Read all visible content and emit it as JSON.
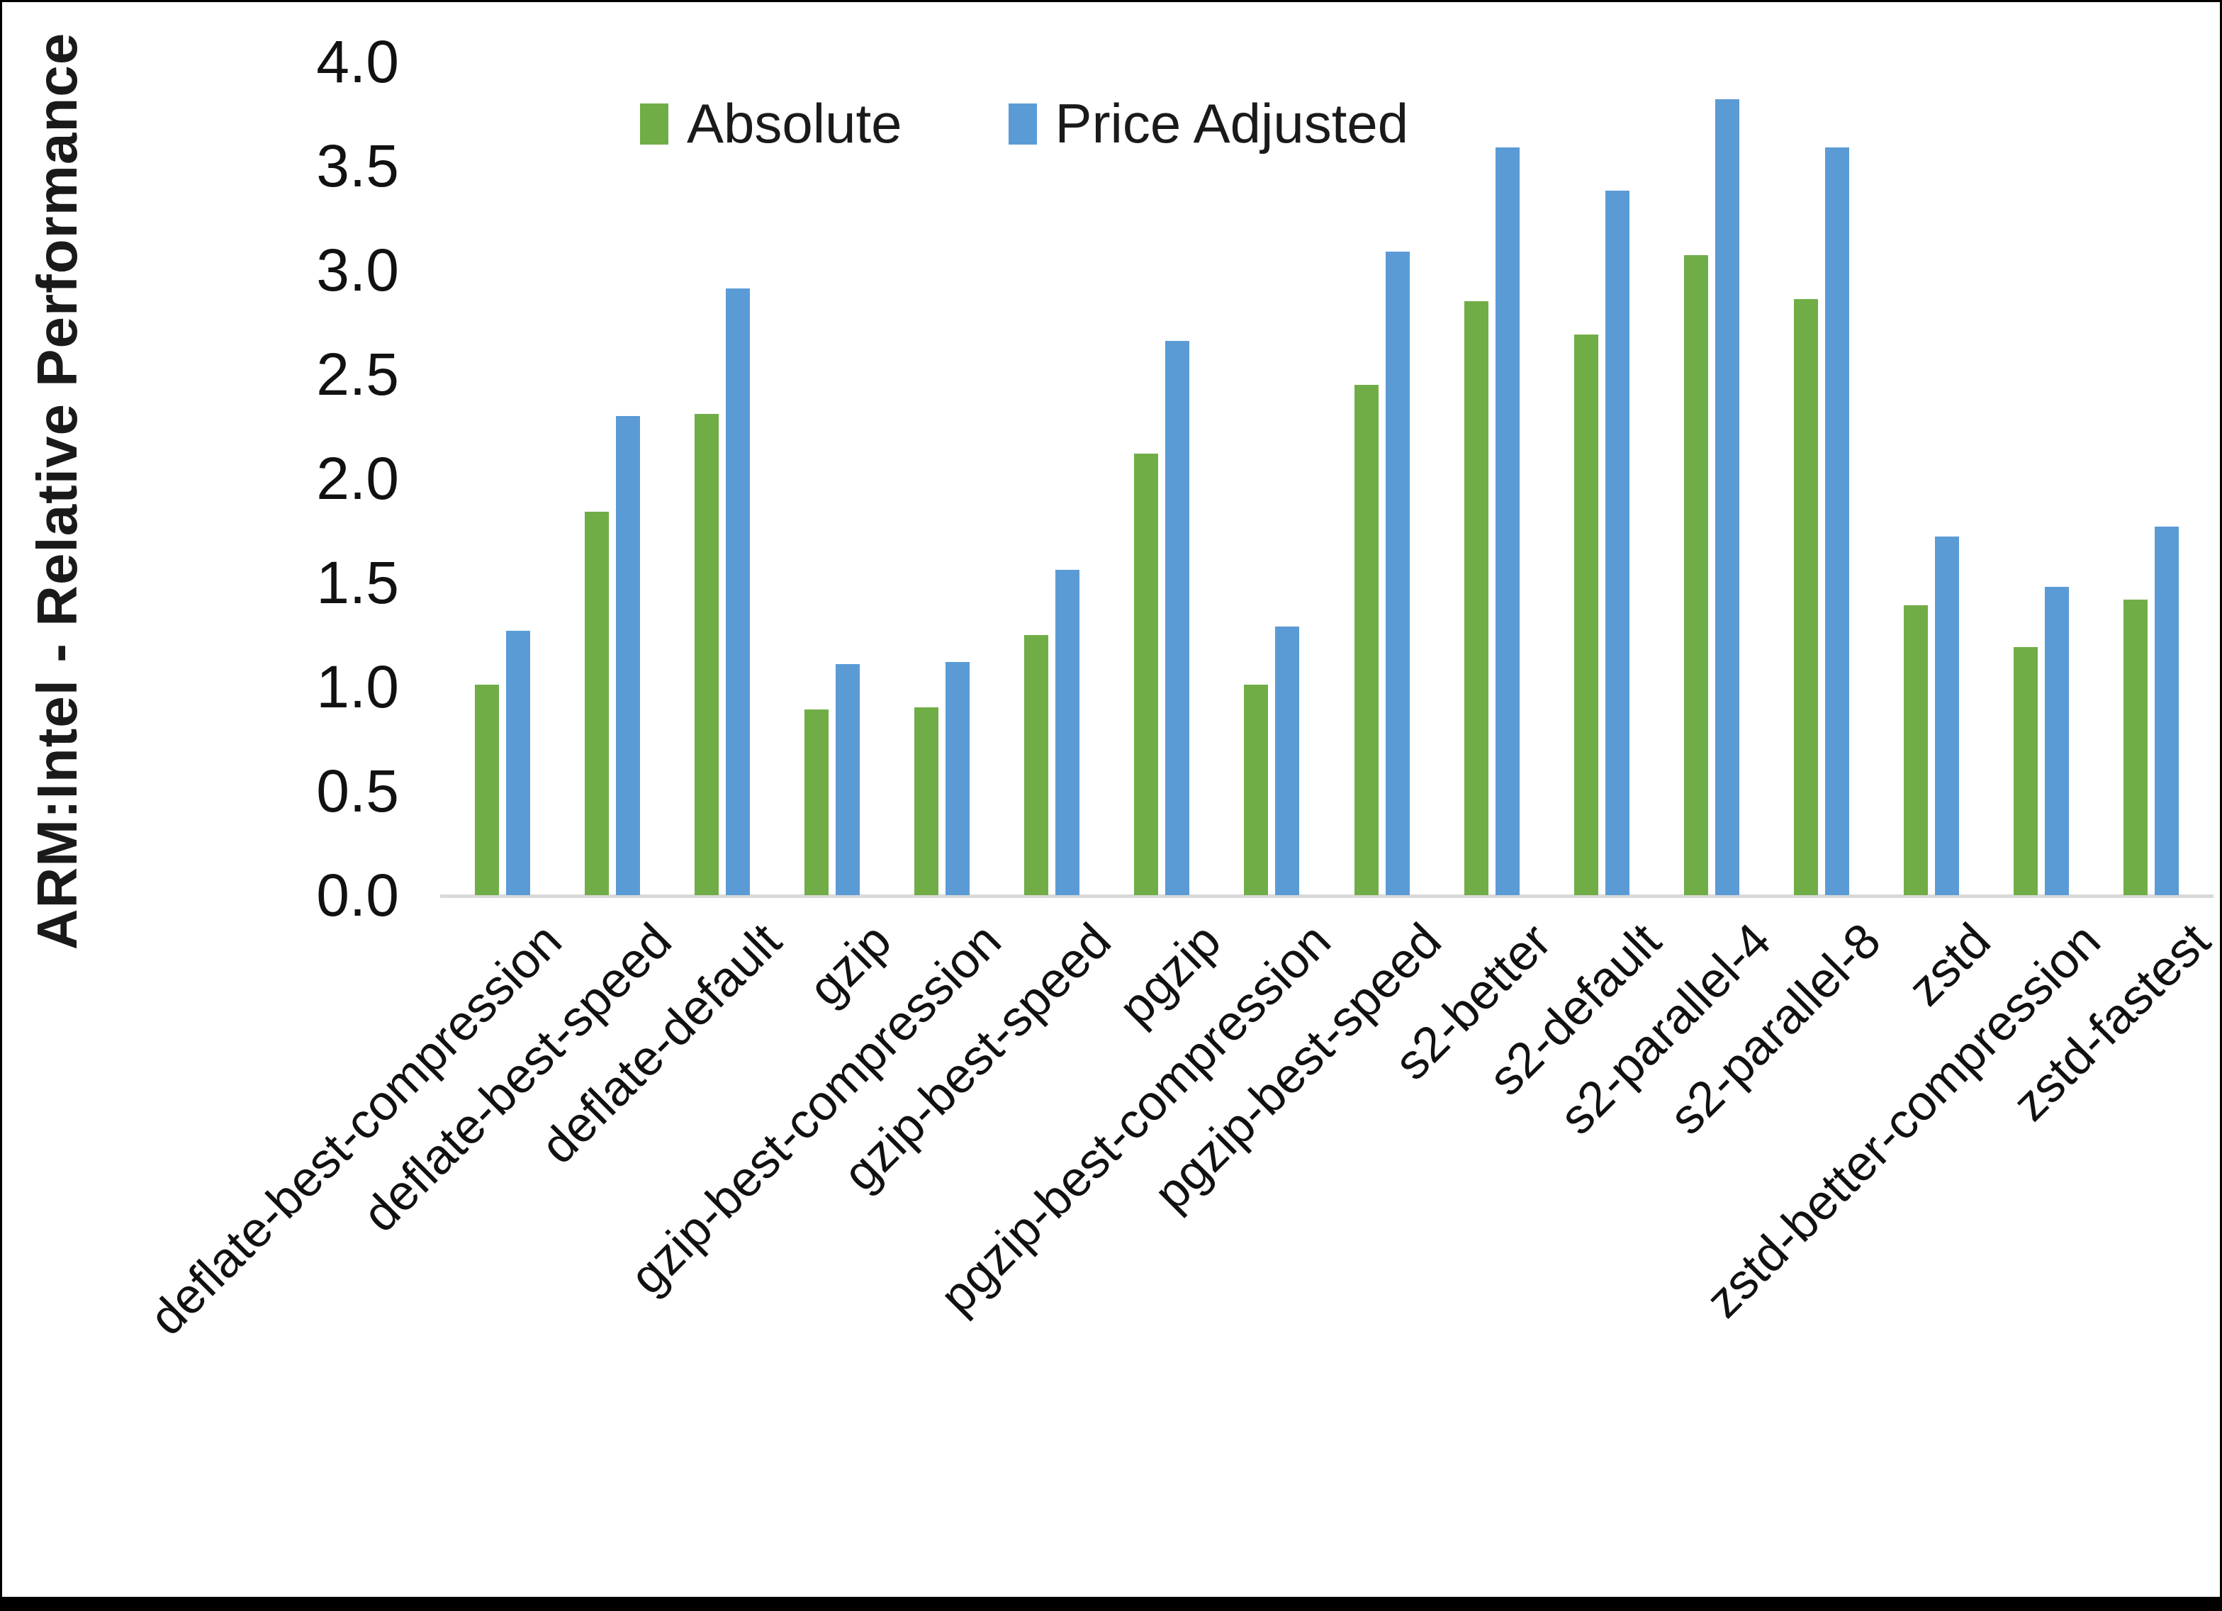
{
  "chart_data": {
    "type": "bar",
    "title": "",
    "ylabel": "ARM:Intel - Relative Performance",
    "xlabel": "",
    "ylim": [
      0,
      4.0
    ],
    "ytick_step": 0.5,
    "ytick_labels": [
      "0.0",
      "0.5",
      "1.0",
      "1.5",
      "2.0",
      "2.5",
      "3.0",
      "3.5",
      "4.0"
    ],
    "grid": false,
    "legend_position": "top-center",
    "axis_line_color": "#d9d9d9",
    "background": "#ffffff",
    "text_color": "#111111",
    "categories": [
      "deflate-best-compression",
      "deflate-best-speed",
      "deflate-default",
      "gzip",
      "gzip-best-compression",
      "gzip-best-speed",
      "pgzip",
      "pgzip-best-compression",
      "pgzip-best-speed",
      "s2-better",
      "s2-default",
      "s2-parallel-4",
      "s2-parallel-8",
      "zstd",
      "zstd-better-compression",
      "zstd-fastest"
    ],
    "series": [
      {
        "name": "Absolute",
        "color": "#70AD47",
        "values": [
          1.01,
          1.84,
          2.31,
          0.89,
          0.9,
          1.25,
          2.12,
          1.01,
          2.45,
          2.85,
          2.69,
          3.07,
          2.86,
          1.39,
          1.19,
          1.42
        ]
      },
      {
        "name": "Price Adjusted",
        "color": "#5B9BD5",
        "values": [
          1.27,
          2.3,
          2.91,
          1.11,
          1.12,
          1.56,
          2.66,
          1.29,
          3.09,
          3.59,
          3.38,
          3.82,
          3.59,
          1.72,
          1.48,
          1.77
        ]
      }
    ]
  }
}
